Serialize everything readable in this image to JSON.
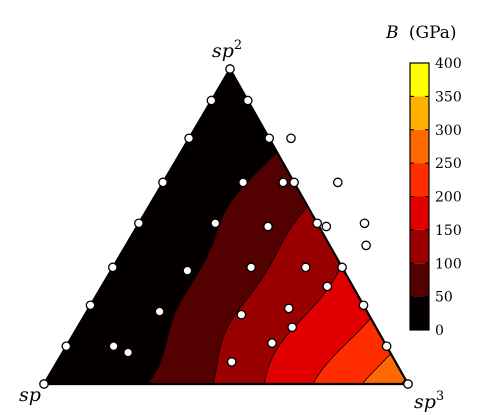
{
  "chart_data": {
    "type": "ternary-contour",
    "colorbar": {
      "title_var": "B",
      "title_unit": "(GPa)",
      "ticks": [
        0,
        50,
        100,
        150,
        200,
        250,
        300,
        350,
        400
      ],
      "range": [
        0,
        400
      ],
      "levels": [
        {
          "from": 0,
          "to": 50,
          "color": "#050000"
        },
        {
          "from": 50,
          "to": 100,
          "color": "#520000"
        },
        {
          "from": 100,
          "to": 150,
          "color": "#9b0000"
        },
        {
          "from": 150,
          "to": 200,
          "color": "#e00000"
        },
        {
          "from": 200,
          "to": 250,
          "color": "#ff2c00"
        },
        {
          "from": 250,
          "to": 300,
          "color": "#ff6a00"
        },
        {
          "from": 300,
          "to": 350,
          "color": "#ffb100"
        },
        {
          "from": 350,
          "to": 400,
          "color": "#ffff00"
        }
      ]
    },
    "corners": {
      "left": {
        "base": "sp",
        "sup": ""
      },
      "top": {
        "base": "sp",
        "sup": "2"
      },
      "right": {
        "base": "sp",
        "sup": "3"
      }
    },
    "contour_boundaries_sp3_fraction": [
      0.0,
      0.25,
      0.44,
      0.62,
      0.77,
      0.88,
      0.96
    ],
    "samples_sp2_sp3": [
      [
        0.0,
        0.0
      ],
      [
        1.0,
        0.0
      ],
      [
        0.0,
        1.0
      ],
      [
        0.12,
        0.0
      ],
      [
        0.25,
        0.0
      ],
      [
        0.37,
        0.0
      ],
      [
        0.51,
        0.0
      ],
      [
        0.64,
        0.0
      ],
      [
        0.78,
        0.0
      ],
      [
        0.9,
        0.0
      ],
      [
        0.9,
        0.1
      ],
      [
        0.78,
        0.22
      ],
      [
        0.64,
        0.36
      ],
      [
        0.51,
        0.49
      ],
      [
        0.37,
        0.63
      ],
      [
        0.25,
        0.75
      ],
      [
        0.12,
        0.88
      ],
      [
        0.12,
        0.13
      ],
      [
        0.1,
        0.18
      ],
      [
        0.23,
        0.2
      ],
      [
        0.36,
        0.21
      ],
      [
        0.51,
        0.21
      ],
      [
        0.64,
        0.22
      ],
      [
        0.07,
        0.48
      ],
      [
        0.22,
        0.43
      ],
      [
        0.37,
        0.38
      ],
      [
        0.5,
        0.36
      ],
      [
        0.64,
        0.33
      ],
      [
        0.78,
        0.28
      ],
      [
        0.13,
        0.56
      ],
      [
        0.24,
        0.55
      ],
      [
        0.37,
        0.53
      ],
      [
        0.5,
        0.52
      ],
      [
        0.64,
        0.48
      ],
      [
        0.18,
        0.59
      ],
      [
        0.31,
        0.62
      ],
      [
        0.44,
        0.66
      ],
      [
        0.51,
        0.62
      ]
    ]
  }
}
